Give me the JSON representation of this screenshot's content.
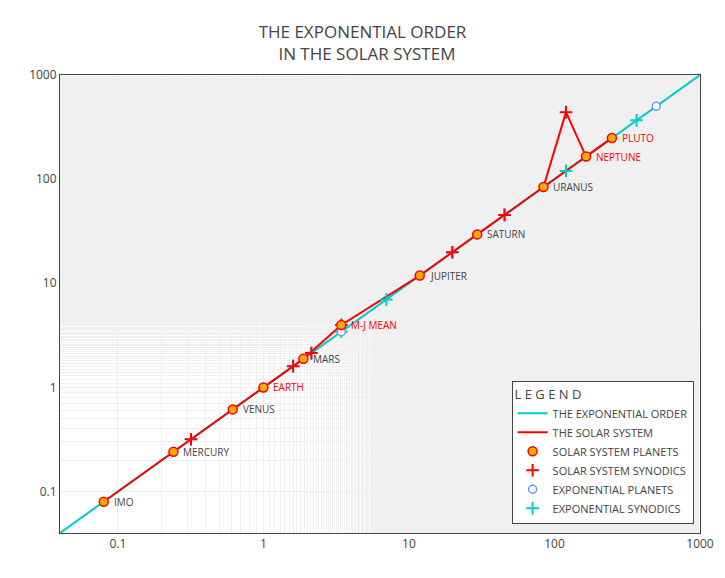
{
  "chart_data": {
    "type": "scatter",
    "title": "THE EXPONENTIAL ORDER\n  IN THE SOLAR SYSTEM",
    "log": true,
    "grid": true,
    "legend": "lower right",
    "legend_title": "L E G E N D",
    "xlim": [
      0.04,
      1000
    ],
    "ylim": [
      0.04,
      1000
    ],
    "xticks": [
      0.1,
      1,
      10,
      100,
      1000
    ],
    "yticks": [
      0.1,
      1,
      10,
      100,
      1000
    ],
    "series": [
      {
        "name": "THE EXPONENTIAL ORDER",
        "type": "line",
        "color": "#00CCCC",
        "x": [
          0.04,
          1000
        ],
        "values": [
          0.04,
          1000
        ]
      },
      {
        "name": "THE SOLAR SYSTEM",
        "type": "line",
        "color": "#FF0000",
        "x": [
          0.0799,
          0.2408,
          0.6152,
          1.0,
          1.8809,
          3.43,
          11.862,
          29.46,
          84.01,
          164.8,
          248.09,
          null,
          84.01,
          120.0,
          164.8,
          248.09
        ],
        "values": [
          0.0799,
          0.2408,
          0.6152,
          1.0,
          1.8809,
          3.98,
          11.862,
          29.46,
          84.01,
          164.8,
          248.09,
          null,
          84.01,
          440.0,
          164.8,
          248.09
        ]
      },
      {
        "name": "SOLAR SYSTEM PLANETS",
        "type": "scatter",
        "marker": "circle",
        "color": "#FFAA00",
        "x": [
          0.0799,
          0.2408,
          0.6152,
          1.0,
          1.8809,
          3.43,
          11.862,
          29.46,
          84.01,
          164.8,
          248.09
        ],
        "values": [
          0.0799,
          0.2408,
          0.6152,
          1.0,
          1.8809,
          3.98,
          11.862,
          29.46,
          84.01,
          164.8,
          248.09
        ]
      },
      {
        "name": "SOLAR SYSTEM SYNODICS",
        "type": "scatter",
        "marker": "cross",
        "color": "#FF0000",
        "x": [
          0.318,
          1.6,
          2.135,
          3.43,
          19.86,
          45.36,
          120.0
        ],
        "values": [
          0.318,
          1.6,
          2.135,
          3.98,
          19.86,
          45.36,
          440.0
        ]
      },
      {
        "name": "EXPONENTIAL PLANETS",
        "type": "scatter",
        "marker": "circle-open",
        "color": "#6699FF",
        "x": [
          0.0799,
          0.2408,
          0.6152,
          1.0,
          1.8809,
          3.43,
          11.862,
          29.46,
          84.01,
          164.8,
          248.09,
          500.0
        ],
        "values": [
          0.0799,
          0.2408,
          0.6152,
          1.0,
          1.8809,
          3.43,
          11.862,
          29.46,
          84.01,
          164.8,
          248.09,
          500.0
        ]
      },
      {
        "name": "EXPONENTIAL SYNODICS",
        "type": "scatter",
        "marker": "cross",
        "color": "#00CCCC",
        "x": [
          0.318,
          1.6,
          2.135,
          3.43,
          7.0,
          19.86,
          45.36,
          120.0,
          366.7
        ],
        "values": [
          0.318,
          1.6,
          2.135,
          3.43,
          7.0,
          19.86,
          45.36,
          120.0,
          366.7
        ]
      }
    ],
    "annotations": [
      {
        "text": "IMO",
        "x": 0.0799,
        "y": 0.0799
      },
      {
        "text": "MERCURY",
        "x": 0.2408,
        "y": 0.2408
      },
      {
        "text": "VENUS",
        "x": 0.6152,
        "y": 0.6152
      },
      {
        "text": "EARTH",
        "x": 1.0,
        "y": 1.0,
        "color": "#FF0000"
      },
      {
        "text": "MARS",
        "x": 1.8809,
        "y": 1.8809
      },
      {
        "text": "M-J MEAN",
        "x": 3.43,
        "y": 3.98,
        "color": "#FF0000"
      },
      {
        "text": "JUPITER",
        "x": 11.862,
        "y": 11.862
      },
      {
        "text": "SATURN",
        "x": 29.46,
        "y": 29.46
      },
      {
        "text": "URANUS",
        "x": 84.01,
        "y": 84.01
      },
      {
        "text": "NEPTUNE",
        "x": 164.8,
        "y": 164.8,
        "color": "#FF0000"
      },
      {
        "text": "PLUTO",
        "x": 248.09,
        "y": 248.09,
        "color": "#FF0000"
      }
    ]
  }
}
